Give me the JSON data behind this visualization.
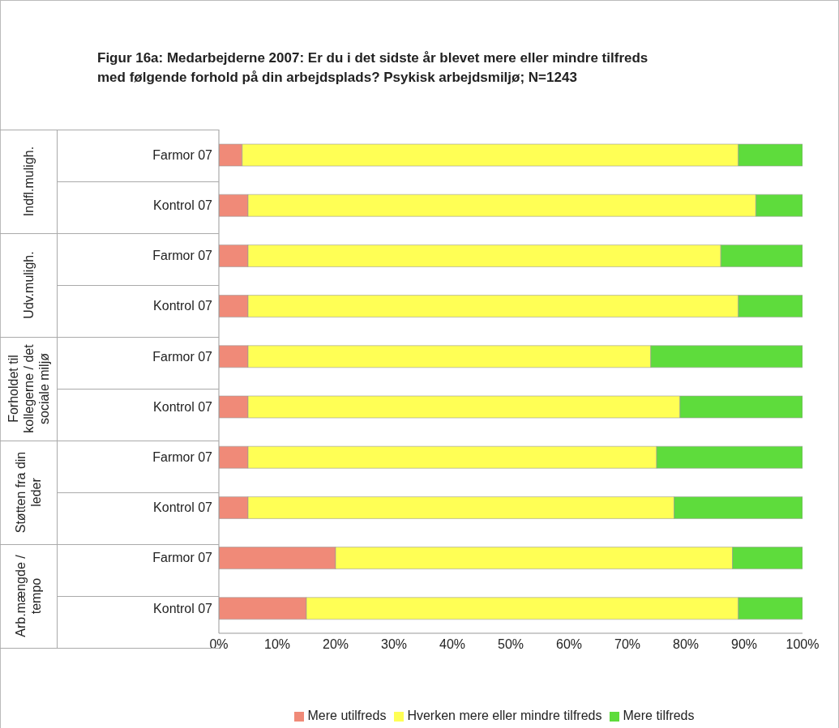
{
  "chart_data": {
    "type": "bar",
    "orientation": "horizontal",
    "stacked": true,
    "title": "Figur 16a: Medarbejderne 2007: Er du i det sidste år blevet mere eller mindre tilfreds med følgende forhold på din arbejdsplads? Psykisk arbejdsmiljø; N=1243",
    "categories": [
      "Farmor 07",
      "Kontrol 07",
      "Farmor 07",
      "Kontrol 07",
      "Farmor 07",
      "Kontrol 07",
      "Farmor 07",
      "Kontrol 07",
      "Farmor 07",
      "Kontrol 07"
    ],
    "annotations": [
      "Indfl.muligh.",
      "Udv.muligh.",
      "Forholdet til kollegerne / det sociale miljø",
      "Støtten fra din leder",
      "Arb.mængde / tempo"
    ],
    "series": [
      {
        "name": "Mere utilfreds",
        "color": "#f08a78",
        "values": [
          4,
          5,
          5,
          5,
          5,
          5,
          5,
          5,
          20,
          15
        ]
      },
      {
        "name": "Hverken mere eller mindre tilfreds",
        "color": "#ffff55",
        "values": [
          85,
          87,
          81,
          84,
          69,
          74,
          70,
          73,
          68,
          74
        ]
      },
      {
        "name": "Mere tilfreds",
        "color": "#5edc3c",
        "values": [
          11,
          8,
          14,
          11,
          26,
          21,
          25,
          22,
          12,
          11
        ]
      }
    ],
    "xlim": [
      0,
      100
    ],
    "xticks": [
      {
        "value": 0,
        "label": "0%"
      },
      {
        "value": 10,
        "label": "10%"
      },
      {
        "value": 20,
        "label": "20%"
      },
      {
        "value": 30,
        "label": "30%"
      },
      {
        "value": 40,
        "label": "40%"
      },
      {
        "value": 50,
        "label": "50%"
      },
      {
        "value": 60,
        "label": "60%"
      },
      {
        "value": 70,
        "label": "70%"
      },
      {
        "value": 80,
        "label": "80%"
      },
      {
        "value": 90,
        "label": "90%"
      },
      {
        "value": 100,
        "label": "100%"
      }
    ],
    "legend": "bottom",
    "grid": false
  }
}
